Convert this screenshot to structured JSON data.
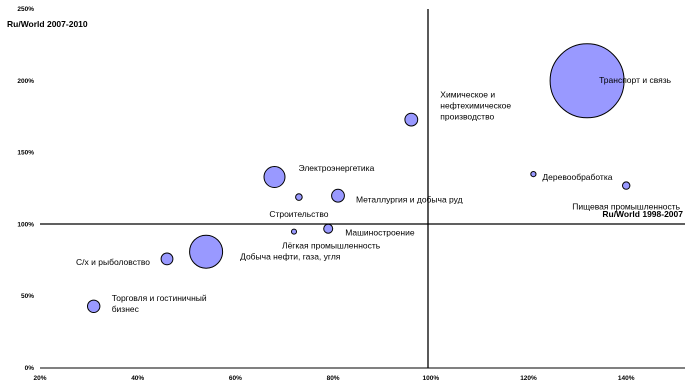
{
  "chart_data": {
    "type": "bubble",
    "xlabel": "Ru/World 1998-2007",
    "ylabel": "Ru/World 2007-2010",
    "xlim": [
      0.2,
      1.5
    ],
    "ylim": [
      0,
      2.5
    ],
    "x_ticks": [
      "20%",
      "40%",
      "60%",
      "80%",
      "100%",
      "120%",
      "140%"
    ],
    "y_ticks": [
      "0%",
      "50%",
      "100%",
      "150%",
      "200%",
      "250%"
    ],
    "bubble_color": "#9999ff",
    "bubble_edge": "#000000",
    "grid": false,
    "points": [
      {
        "label": [
          "Транспорт и связь"
        ],
        "x": 1.32,
        "y": 2.0,
        "size": 1.0
      },
      {
        "label": [
          "Химическое и",
          "нефтехимическое",
          "производство"
        ],
        "x": 0.96,
        "y": 1.73,
        "size": 0.03
      },
      {
        "label": [
          "Деревообработка"
        ],
        "x": 1.21,
        "y": 1.35,
        "size": 0.005
      },
      {
        "label": [
          "Пищевая промышленность"
        ],
        "x": 1.4,
        "y": 1.27,
        "size": 0.01
      },
      {
        "label": [
          "Электроэнергетика"
        ],
        "x": 0.68,
        "y": 1.33,
        "size": 0.08
      },
      {
        "label": [
          "Строительство"
        ],
        "x": 0.73,
        "y": 1.19,
        "size": 0.008
      },
      {
        "label": [
          "Металлургия и добыча руд"
        ],
        "x": 0.81,
        "y": 1.2,
        "size": 0.03
      },
      {
        "label": [
          "Машиностроение"
        ],
        "x": 0.79,
        "y": 0.97,
        "size": 0.015
      },
      {
        "label": [
          "Лёгкая промышленность"
        ],
        "x": 0.72,
        "y": 0.95,
        "size": 0.001
      },
      {
        "label": [
          "Добыча нефти, газа, угля"
        ],
        "x": 0.54,
        "y": 0.81,
        "size": 0.2
      },
      {
        "label": [
          "С/х и рыболовство"
        ],
        "x": 0.46,
        "y": 0.76,
        "size": 0.025
      },
      {
        "label": [
          "Торговля и гостиничный",
          "бизнес"
        ],
        "x": 0.31,
        "y": 0.43,
        "size": 0.028
      }
    ]
  }
}
